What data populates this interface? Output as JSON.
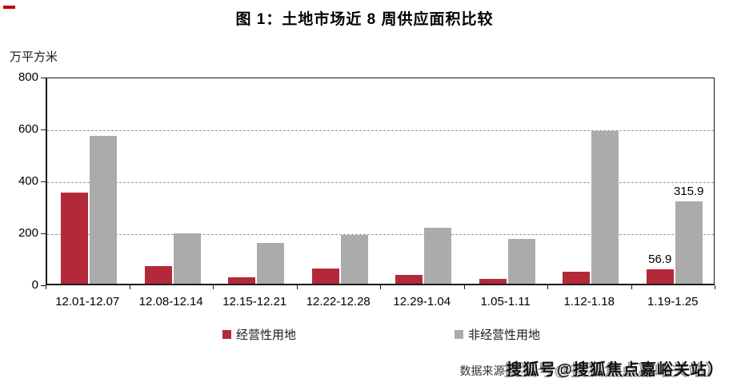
{
  "header": {
    "title": "图 1：土地市场近 8 周供应面积比较"
  },
  "chart_data": {
    "type": "bar",
    "unit_label": "万平方米",
    "categories": [
      "12.01-12.07",
      "12.08-12.14",
      "12.15-12.21",
      "12.22-12.28",
      "12.29-1.04",
      "1.05-1.11",
      "1.12-1.18",
      "1.19-1.25"
    ],
    "series": [
      {
        "name": "经营性用地",
        "color": "#b4293a",
        "values": [
          350,
          67,
          25,
          60,
          35,
          20,
          45,
          56.9
        ]
      },
      {
        "name": "非经营性用地",
        "color": "#ababab",
        "values": [
          570,
          193,
          157,
          189,
          214,
          171,
          587,
          315.9
        ]
      }
    ],
    "data_labels": [
      {
        "series": 0,
        "index": 7,
        "text": "56.9"
      },
      {
        "series": 1,
        "index": 7,
        "text": "315.9"
      }
    ],
    "ylim": [
      0,
      800
    ],
    "yticks": [
      0,
      200,
      400,
      600,
      800
    ],
    "gridlines": [
      200,
      400,
      600
    ],
    "grid": "horizontal-dashed",
    "legend_position": "bottom"
  },
  "footer": {
    "source_label": "数据来源",
    "watermark": "搜狐号@搜狐焦点嘉峪关站）"
  }
}
